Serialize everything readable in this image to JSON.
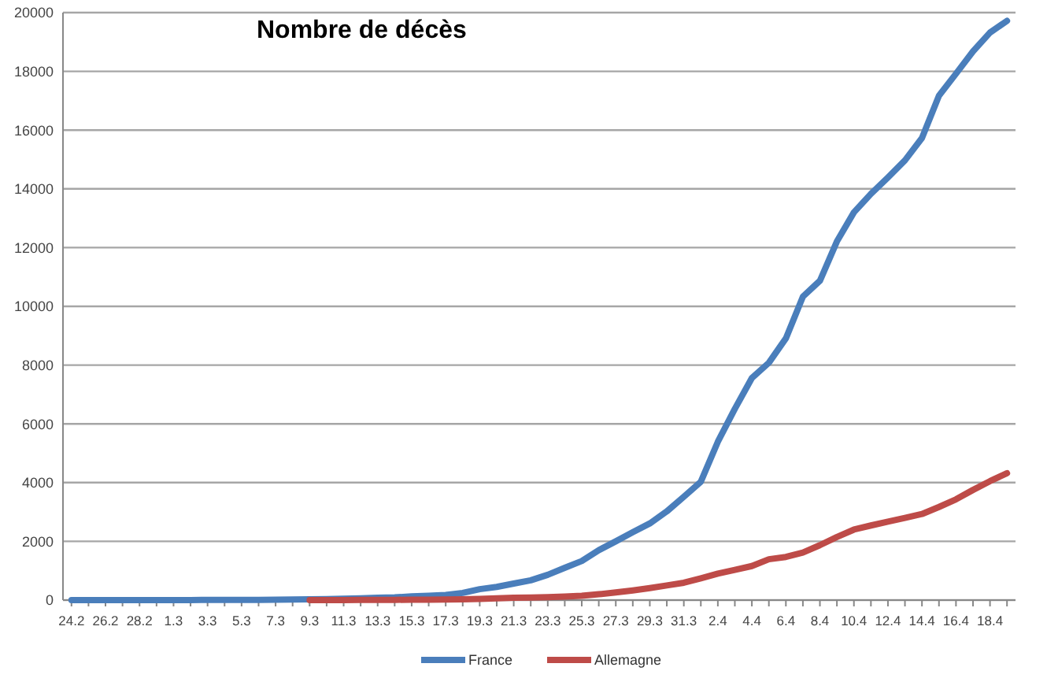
{
  "chart_data": {
    "type": "line",
    "title": "Nombre de décès",
    "categories": [
      "24.2",
      null,
      "26.2",
      null,
      "28.2",
      null,
      "1.3",
      null,
      "3.3",
      null,
      "5.3",
      null,
      "7.3",
      null,
      "9.3",
      null,
      "11.3",
      null,
      "13.3",
      null,
      "15.3",
      null,
      "17.3",
      null,
      "19.3",
      null,
      "21.3",
      null,
      "23.3",
      null,
      "25.3",
      null,
      "27.3",
      null,
      "29.3",
      null,
      "31.3",
      null,
      "2.4",
      null,
      "4.4",
      null,
      "6.4",
      null,
      "8.4",
      null,
      "10.4",
      null,
      "12.4",
      null,
      "14.4",
      null,
      "16.4",
      null,
      "18.4",
      null
    ],
    "series": [
      {
        "name": "France",
        "color": "#4a7ebb",
        "values": [
          1,
          2,
          2,
          2,
          2,
          2,
          2,
          3,
          4,
          4,
          6,
          9,
          11,
          19,
          25,
          33,
          48,
          61,
          79,
          91,
          127,
          148,
          175,
          244,
          372,
          450,
          562,
          674,
          860,
          1100,
          1330,
          1700,
          2000,
          2310,
          2610,
          3020,
          3520,
          4030,
          5390,
          6510,
          7560,
          8080,
          8910,
          10330,
          10870,
          12210,
          13200,
          13830,
          14390,
          14970,
          15730,
          17170,
          17920,
          18680,
          19320,
          19720
        ]
      },
      {
        "name": "Allemagne",
        "color": "#be4b48",
        "values": [
          null,
          null,
          null,
          null,
          null,
          null,
          null,
          null,
          null,
          null,
          null,
          null,
          null,
          null,
          2,
          2,
          3,
          6,
          8,
          9,
          12,
          15,
          20,
          30,
          40,
          60,
          80,
          90,
          100,
          120,
          150,
          200,
          260,
          330,
          410,
          500,
          590,
          740,
          900,
          1030,
          1160,
          1390,
          1470,
          1620,
          1870,
          2150,
          2400,
          2540,
          2670,
          2800,
          2930,
          3170,
          3430,
          3750,
          4050,
          4320
        ]
      }
    ],
    "ylim": [
      0,
      20000
    ],
    "yticks": [
      0,
      2000,
      4000,
      6000,
      8000,
      10000,
      12000,
      14000,
      16000,
      18000,
      20000
    ],
    "grid": "y",
    "legend": "bottom",
    "line_style": "solid",
    "marker": "none"
  }
}
